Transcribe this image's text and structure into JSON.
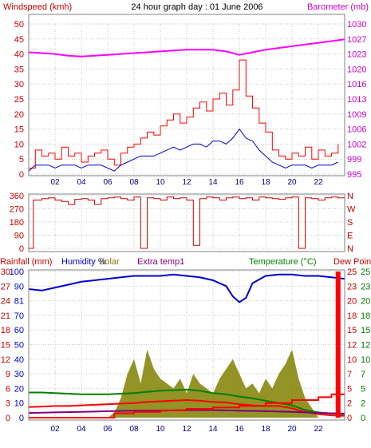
{
  "chart_data": [
    {
      "type": "line",
      "title": "24 hour graph day : 01 June 2006",
      "left_axis_label": "Windspeed (kmh)",
      "right_axis_label": "Barometer (mb)",
      "x_ticks": [
        "02",
        "04",
        "06",
        "08",
        "10",
        "12",
        "14",
        "16",
        "18",
        "20",
        "22"
      ],
      "x_range_hours": [
        0,
        24
      ],
      "left_ylim": [
        0,
        50
      ],
      "left_ticks": [
        "0",
        "5",
        "10",
        "15",
        "20",
        "25",
        "30",
        "35",
        "40",
        "45",
        "50"
      ],
      "right_ylim": [
        995,
        1030
      ],
      "right_ticks": [
        "995",
        "999",
        "1002",
        "1006",
        "1009",
        "1013",
        "1016",
        "1020",
        "1023",
        "1027",
        "1030"
      ],
      "grid": true,
      "colors": {
        "windspeed": "#ff0000",
        "average": "#0000cc",
        "barometer": "#ff00ff"
      },
      "series": [
        {
          "key": "windspeed",
          "axis": "left",
          "x": [
            0,
            0.5,
            1,
            1.5,
            2,
            2.5,
            3,
            3.5,
            4,
            4.5,
            5,
            5.5,
            6,
            6.5,
            7,
            7.5,
            8,
            8.5,
            9,
            9.5,
            10,
            10.5,
            11,
            11.5,
            12,
            12.5,
            13,
            13.5,
            14,
            14.5,
            15,
            15.5,
            16,
            16.5,
            17,
            17.5,
            18,
            18.5,
            19,
            19.5,
            20,
            20.5,
            21,
            21.5,
            22,
            22.5,
            23,
            23.5
          ],
          "y": [
            2,
            8,
            6,
            7,
            5,
            9,
            6,
            7,
            4,
            6,
            7,
            8,
            5,
            3,
            7,
            9,
            10,
            12,
            14,
            13,
            16,
            18,
            20,
            17,
            19,
            22,
            24,
            21,
            25,
            27,
            23,
            28,
            38,
            26,
            22,
            17,
            14,
            8,
            6,
            5,
            7,
            6,
            9,
            5,
            8,
            6,
            7,
            10
          ]
        },
        {
          "key": "average",
          "axis": "left",
          "x": [
            0,
            0.5,
            1,
            1.5,
            2,
            2.5,
            3,
            3.5,
            4,
            4.5,
            5,
            5.5,
            6,
            6.5,
            7,
            7.5,
            8,
            8.5,
            9,
            9.5,
            10,
            10.5,
            11,
            11.5,
            12,
            12.5,
            13,
            13.5,
            14,
            14.5,
            15,
            15.5,
            16,
            16.5,
            17,
            17.5,
            18,
            18.5,
            19,
            19.5,
            20,
            20.5,
            21,
            21.5,
            22,
            22.5,
            23,
            23.5
          ],
          "y": [
            1,
            3,
            3,
            3,
            2,
            3,
            3,
            3,
            2,
            3,
            3,
            3,
            2,
            1,
            3,
            4,
            5,
            6,
            6,
            6,
            7,
            8,
            9,
            8,
            9,
            10,
            10,
            9,
            11,
            11,
            10,
            12,
            15,
            12,
            11,
            8,
            6,
            4,
            3,
            2,
            3,
            3,
            3,
            2,
            3,
            3,
            3,
            4
          ]
        },
        {
          "key": "barometer",
          "axis": "right",
          "x": [
            0,
            1,
            2,
            3,
            4,
            5,
            6,
            7,
            8,
            9,
            10,
            11,
            12,
            13,
            14,
            15,
            15.5,
            16,
            17,
            18,
            19,
            20,
            21,
            22,
            23,
            24
          ],
          "y": [
            1023.4,
            1023.2,
            1023.0,
            1022.6,
            1022.4,
            1022.6,
            1022.8,
            1023.0,
            1023.2,
            1023.4,
            1023.6,
            1023.8,
            1024.0,
            1024.0,
            1024.0,
            1023.6,
            1023.2,
            1022.8,
            1023.4,
            1024.0,
            1024.4,
            1024.8,
            1025.2,
            1025.6,
            1026.0,
            1026.4
          ]
        }
      ]
    },
    {
      "type": "line",
      "left_axis_label": "",
      "left_ylim": [
        0,
        360
      ],
      "left_ticks": [
        "0",
        "90",
        "180",
        "270",
        "360"
      ],
      "right_ticks": [
        "N",
        "E",
        "S",
        "W",
        "N"
      ],
      "x_range_hours": [
        0,
        24
      ],
      "grid": true,
      "colors": {
        "direction": "#cc0000"
      },
      "series": [
        {
          "key": "direction",
          "axis": "left",
          "x": [
            0,
            0.3,
            0.35,
            1,
            1.5,
            2,
            2.5,
            3,
            3.5,
            4,
            4.5,
            5,
            5.5,
            6,
            6.5,
            7,
            7.5,
            8,
            8.5,
            9,
            9.5,
            10,
            10.5,
            11,
            11.5,
            12,
            12.5,
            13,
            13.5,
            14,
            14.5,
            15,
            15.5,
            16,
            16.5,
            17,
            17.5,
            18,
            18.5,
            19,
            19.5,
            20,
            20.5,
            21,
            21.5,
            22,
            22.5,
            23,
            23.5,
            24
          ],
          "y": [
            0,
            0,
            330,
            340,
            345,
            330,
            320,
            300,
            335,
            340,
            330,
            300,
            340,
            345,
            350,
            340,
            330,
            350,
            0,
            345,
            340,
            330,
            350,
            340,
            345,
            330,
            20,
            340,
            350,
            345,
            330,
            345,
            350,
            340,
            345,
            330,
            350,
            345,
            340,
            335,
            345,
            350,
            0,
            345,
            340,
            330,
            345,
            350,
            345,
            350
          ]
        }
      ]
    },
    {
      "type": "line",
      "left_axis_labels": [
        "Rainfall (mm)",
        "Humidity %",
        "Solar",
        "Extra temp1"
      ],
      "right_axis_labels": [
        "Temperature (°C)",
        "Dew Point"
      ],
      "x_ticks": [
        "02",
        "04",
        "06",
        "08",
        "10",
        "12",
        "14",
        "16",
        "18",
        "20",
        "22"
      ],
      "x_range_hours": [
        0,
        24
      ],
      "left_ylim": [
        0,
        100
      ],
      "left_ticks": [
        "0",
        "10",
        "20",
        "30",
        "40",
        "50",
        "60",
        "70",
        "81",
        "90",
        "100"
      ],
      "mid_ticks": [
        "0",
        "3",
        "6",
        "9",
        "12",
        "15",
        "18",
        "21",
        "24",
        "27",
        "30"
      ],
      "right_ticks_outer": [
        "0",
        "2",
        "5",
        "7",
        "10",
        "12",
        "15",
        "18",
        "20",
        "23",
        "25"
      ],
      "right_ticks_inner": [
        "0",
        "2",
        "5",
        "7",
        "10",
        "12",
        "15",
        "18",
        "20",
        "23",
        "25"
      ],
      "grid": true,
      "colors": {
        "rainfall": "#ff0000",
        "humidity": "#0000cc",
        "solar": "#808000",
        "extra": "#800080",
        "temperature": "#008000",
        "dewpoint": "#ff0000"
      },
      "series": [
        {
          "key": "humidity",
          "axis": "left",
          "x": [
            0,
            1,
            2,
            3,
            4,
            5,
            6,
            7,
            8,
            9,
            10,
            11,
            12,
            13,
            14,
            15,
            15.5,
            16,
            16.5,
            17,
            18,
            19,
            20,
            21,
            22,
            23,
            24
          ],
          "y": [
            88,
            87,
            89,
            91,
            93,
            94,
            95,
            96,
            97,
            97,
            97,
            98,
            97,
            96,
            94,
            90,
            83,
            79,
            82,
            92,
            97,
            98,
            98,
            97,
            97,
            96,
            95
          ]
        },
        {
          "key": "solar",
          "axis": "mid",
          "x": [
            0,
            6,
            6.5,
            7,
            7.5,
            8,
            8.5,
            9,
            9.5,
            10,
            10.5,
            11,
            11.5,
            12,
            12.5,
            13,
            13.5,
            14,
            14.5,
            15,
            15.5,
            16,
            16.5,
            17,
            17.5,
            18,
            18.5,
            19,
            19.5,
            20,
            20.5,
            21,
            21.5,
            22,
            24
          ],
          "y": [
            0,
            0,
            1,
            4,
            9,
            12,
            7,
            14,
            10,
            8,
            7,
            6,
            8,
            5,
            9,
            7,
            6,
            5,
            8,
            10,
            12,
            9,
            6,
            7,
            5,
            8,
            6,
            9,
            11,
            14,
            8,
            4,
            2,
            0,
            0
          ]
        },
        {
          "key": "temperature",
          "axis": "right",
          "x": [
            0,
            1,
            2,
            3,
            4,
            5,
            6,
            7,
            8,
            9,
            10,
            11,
            12,
            13,
            14,
            15,
            16,
            17,
            18,
            19,
            20,
            21,
            22,
            23,
            24
          ],
          "y": [
            4.3,
            4.3,
            4.2,
            4.1,
            4.0,
            4.0,
            4.0,
            4.1,
            4.2,
            4.4,
            4.6,
            4.7,
            4.8,
            4.6,
            4.2,
            4.0,
            3.6,
            3.3,
            2.9,
            2.5,
            2.1,
            1.3,
            0.9,
            0.7,
            0.6
          ]
        },
        {
          "key": "dewpoint",
          "axis": "right",
          "x": [
            0,
            1,
            2,
            3,
            4,
            5,
            6,
            7,
            8,
            9,
            10,
            11,
            12,
            13,
            14,
            15,
            16,
            17,
            18,
            19,
            20,
            21,
            22,
            23,
            24
          ],
          "y": [
            1.8,
            1.9,
            2.0,
            2.0,
            2.1,
            2.2,
            2.3,
            2.4,
            2.5,
            2.7,
            2.8,
            2.9,
            3.0,
            2.9,
            2.7,
            2.6,
            2.3,
            2.1,
            2.0,
            2.0,
            1.6,
            1.0,
            0.6,
            0.4,
            0.3
          ]
        },
        {
          "key": "extra",
          "axis": "right",
          "x": [
            0,
            2,
            4,
            6,
            8,
            10,
            12,
            14,
            16,
            18,
            20,
            22,
            24
          ],
          "y": [
            0.8,
            0.9,
            1.0,
            1.1,
            1.2,
            1.2,
            1.3,
            1.3,
            1.2,
            1.1,
            1.0,
            0.8,
            0.7
          ]
        },
        {
          "key": "rainfall",
          "axis": "left",
          "x": [
            0,
            6,
            6.5,
            8,
            10,
            12,
            14,
            16,
            18,
            20,
            22,
            23,
            23.3,
            23.8,
            24
          ],
          "y": [
            0,
            0,
            3,
            4,
            5,
            6,
            7,
            8,
            10,
            12,
            14,
            16,
            16,
            16,
            16
          ]
        },
        {
          "key": "rain_bar",
          "axis": "left",
          "x": [
            23.5
          ],
          "y": [
            100
          ]
        }
      ]
    }
  ]
}
